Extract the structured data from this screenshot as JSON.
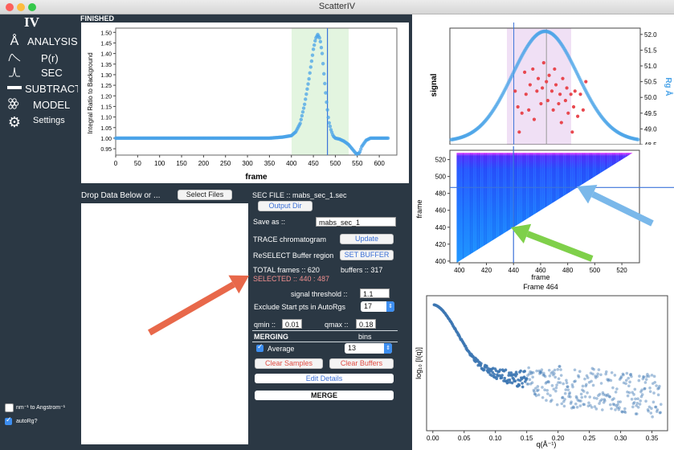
{
  "window": {
    "title": "ScatterIV",
    "traffic_lights": {
      "close": "#fc605c",
      "minimize": "#fdbc40",
      "zoom": "#34c84a"
    }
  },
  "sidebar": {
    "logo": "IV",
    "items": [
      {
        "label": "ANALYSIS",
        "icon": "angstrom-icon"
      },
      {
        "label": "P(r)",
        "icon": "pr-curve-icon"
      },
      {
        "label": "SEC",
        "icon": "sec-peak-icon"
      },
      {
        "label": "SUBTRACT",
        "icon": "subtract-bar-icon"
      },
      {
        "label": "MODEL",
        "icon": "model-beads-icon"
      },
      {
        "label": "Settings",
        "icon": "gear-icon"
      }
    ],
    "checkboxes": [
      {
        "label": "nm⁻¹ to Angstrom⁻¹",
        "checked": false
      },
      {
        "label": "autoRg?",
        "checked": true
      }
    ]
  },
  "status": "FINISHED",
  "trace_plot": {
    "xlabel": "frame",
    "ylabel": "Integral Ratio to Background",
    "xticks": [
      "0",
      "50",
      "100",
      "150",
      "200",
      "250",
      "300",
      "350",
      "400",
      "450",
      "500",
      "550",
      "600"
    ],
    "yticks": [
      "0.95",
      "1.00",
      "1.05",
      "1.10",
      "1.15",
      "1.20",
      "1.25",
      "1.30",
      "1.35",
      "1.40",
      "1.45",
      "1.50"
    ]
  },
  "chart_data": [
    {
      "type": "line",
      "xlabel": "frame",
      "ylabel": "Integral Ratio to Background",
      "xlim": [
        0,
        640
      ],
      "ylim": [
        0.92,
        1.52
      ],
      "series": [
        {
          "x": [
            0,
            100,
            200,
            300,
            350,
            380,
            400,
            410,
            420,
            430,
            440,
            450,
            455,
            460,
            465,
            470,
            475,
            480,
            485,
            490,
            495,
            500,
            510,
            520,
            530,
            540,
            548,
            555,
            560,
            570,
            580,
            600,
            620
          ],
          "values": [
            1.0,
            1.0,
            1.0,
            1.0,
            1.0,
            1.005,
            1.012,
            1.03,
            1.07,
            1.16,
            1.28,
            1.42,
            1.47,
            1.49,
            1.47,
            1.4,
            1.28,
            1.17,
            1.08,
            1.04,
            1.01,
            1.0,
            0.995,
            0.985,
            0.97,
            0.945,
            0.925,
            0.93,
            0.96,
            0.99,
            1.0,
            1.0,
            1.0
          ]
        }
      ],
      "highlight_region": [
        400,
        535
      ],
      "vertical_marker": 482
    },
    {
      "type": "scatter",
      "xlabel": "",
      "ylabel": "signal",
      "ylabel_right": "Rg Å",
      "right_ticks": [
        "48.5",
        "49.0",
        "49.5",
        "50.0",
        "50.5",
        "51.0",
        "51.5",
        "52.0"
      ],
      "right_ylim": [
        48.5,
        52.2
      ],
      "selected_region": [
        440,
        487
      ],
      "vertical_marker": 464,
      "rg_points": [
        [
          441,
          50.2
        ],
        [
          443,
          49.7
        ],
        [
          444,
          48.9
        ],
        [
          446,
          49.5
        ],
        [
          448,
          50.8
        ],
        [
          449,
          50.1
        ],
        [
          451,
          49.6
        ],
        [
          452,
          50.4
        ],
        [
          454,
          50.9
        ],
        [
          455,
          49.3
        ],
        [
          457,
          50.2
        ],
        [
          458,
          50.6
        ],
        [
          460,
          49.8
        ],
        [
          461,
          50.3
        ],
        [
          462,
          51.1
        ],
        [
          464,
          50.5
        ],
        [
          465,
          49.9
        ],
        [
          466,
          50.7
        ],
        [
          468,
          50.2
        ],
        [
          469,
          49.6
        ],
        [
          470,
          50.9
        ],
        [
          471,
          50.4
        ],
        [
          473,
          49.8
        ],
        [
          474,
          50.1
        ],
        [
          475,
          49.2
        ],
        [
          476,
          50.6
        ],
        [
          478,
          49.9
        ],
        [
          479,
          50.3
        ],
        [
          480,
          49.5
        ],
        [
          482,
          50.1
        ],
        [
          483,
          48.9
        ],
        [
          484,
          49.7
        ],
        [
          485,
          50.2
        ],
        [
          487,
          49.4
        ],
        [
          489,
          50.1
        ],
        [
          491,
          49.6
        ],
        [
          493,
          50.5
        ]
      ]
    },
    {
      "type": "heatmap",
      "xlabel": "frame",
      "ylabel": "frame",
      "xticks": [
        "400",
        "420",
        "440",
        "460",
        "480",
        "500",
        "520"
      ],
      "yticks": [
        "400",
        "420",
        "440",
        "460",
        "480",
        "500",
        "520"
      ],
      "xlim": [
        393,
        533
      ],
      "ylim": [
        398,
        531
      ],
      "crosshair": {
        "x": 440,
        "y": 487
      }
    },
    {
      "type": "scatter",
      "title": "Frame 464",
      "xlabel": "q(Å⁻¹)",
      "ylabel": "log₁₀ [I(q)]",
      "xticks": [
        "0.00",
        "0.05",
        "0.10",
        "0.15",
        "0.20",
        "0.25",
        "0.30",
        "0.35"
      ],
      "xlim": [
        -0.01,
        0.375
      ]
    }
  ],
  "drop": {
    "label": "Drop Data Below or ...",
    "select_files": "Select Files"
  },
  "controls": {
    "sec_file": "SEC FILE :: mabs_sec_1.sec",
    "output_dir": "Output Dir",
    "save_as_label": "Save as ::",
    "save_as_value": "mabs_sec_1",
    "trace_label": "TRACE chromatogram",
    "update": "Update",
    "reselect_label": "ReSELECT Buffer region",
    "set_buffer": "SET BUFFER",
    "total_frames": "TOTAL frames :: 620",
    "buffers": "buffers :: 317",
    "selected": "SELECTED :: 440 : 487",
    "signal_threshold_label": "signal threshold ::",
    "signal_threshold_value": "1.1",
    "exclude_label": "Exclude Start pts in AutoRgs",
    "exclude_value": "17",
    "qmin_label": "qmin ::",
    "qmin_value": "0.01",
    "qmax_label": "qmax ::",
    "qmax_value": "0.18",
    "merging": "MERGING",
    "bins_label": "bins",
    "average_label": "Average",
    "bins_value": "13",
    "clear_samples": "Clear Samples",
    "clear_buffers": "Clear Buffers",
    "edit_details": "Edit Details",
    "merge": "MERGE"
  },
  "colors": {
    "panel_bg": "#2b3844",
    "trace": "#4aa3e8",
    "selected_text": "#f08f8f",
    "arrow_red": "#e8684a",
    "arrow_blue": "#7ab8ea",
    "arrow_green": "#7fd04a",
    "rg_points": "#e8484f"
  }
}
